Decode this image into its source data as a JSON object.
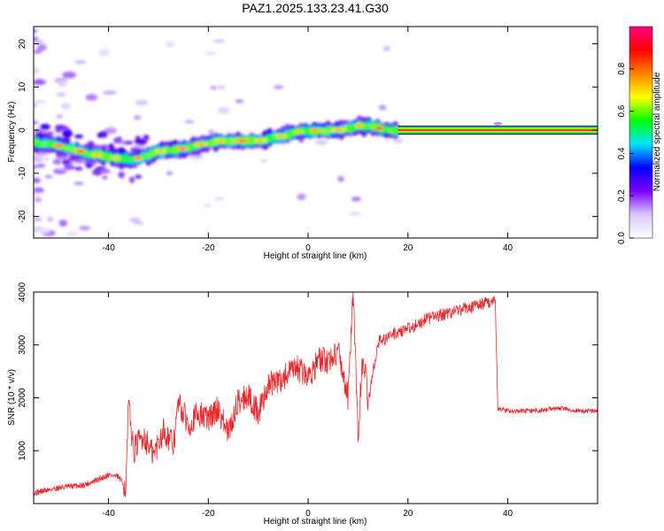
{
  "chart_data": [
    {
      "type": "heatmap",
      "title": "PAZ1.2025.133.23.41.G30",
      "xlabel": "Height of straight line (km)",
      "ylabel": "Frequency (Hz)",
      "xlim": [
        -55,
        58
      ],
      "ylim": [
        -25,
        24
      ],
      "xticks": [
        -40,
        -20,
        0,
        20,
        40
      ],
      "yticks": [
        -20,
        -10,
        0,
        10,
        20
      ],
      "colorbar": {
        "label": "Normalized spectral amplitude",
        "range": [
          0,
          1
        ],
        "ticks": [
          "0.0",
          "0.2",
          "0.4",
          "0.6",
          "0.8"
        ],
        "colors": [
          "#ffffff",
          "#d9c8ff",
          "#7b00ff",
          "#0000ff",
          "#00e5ff",
          "#00ff00",
          "#ffff00",
          "#ff8000",
          "#ff0000",
          "#ff0080"
        ]
      },
      "ridge": {
        "x": [
          -53,
          -48,
          -44,
          -40,
          -36,
          -34,
          -30,
          -26,
          -22,
          -18,
          -14,
          -10,
          -6,
          -2,
          2,
          6,
          8,
          10,
          12,
          14,
          16,
          18,
          30,
          40,
          58
        ],
        "y": [
          -3,
          -4,
          -5.5,
          -6,
          -7,
          -6.5,
          -5,
          -4.5,
          -3.5,
          -2.5,
          -2.5,
          -2.5,
          -1.5,
          -0.5,
          0,
          0,
          0.5,
          1,
          1,
          0.5,
          0,
          0,
          0,
          0,
          0
        ]
      },
      "grid": false
    },
    {
      "type": "line",
      "xlabel": "Height of straight line (km)",
      "ylabel": "SNR (10 * v/v)",
      "xlim": [
        -55,
        58
      ],
      "ylim": [
        0,
        4000
      ],
      "xticks": [
        -40,
        -20,
        0,
        20,
        40
      ],
      "yticks": [
        1000,
        2000,
        3000,
        4000
      ],
      "color": "#e8282b",
      "series": [
        {
          "x": [
            -55,
            -50,
            -45,
            -42,
            -40,
            -38,
            -36.5,
            -36,
            -35,
            -33,
            -31,
            -29,
            -27,
            -26,
            -24,
            -22,
            -20,
            -18,
            -16,
            -14,
            -12,
            -10,
            -8,
            -6,
            -4,
            -2,
            0,
            2,
            4,
            6,
            8,
            9,
            10,
            11,
            12,
            14,
            16,
            18,
            20,
            22,
            24,
            26,
            28,
            30,
            32,
            34,
            36,
            37.5,
            38,
            40,
            45,
            50,
            55,
            58
          ],
          "y": [
            200,
            300,
            350,
            450,
            550,
            500,
            300,
            1900,
            1000,
            1300,
            900,
            1400,
            1100,
            1900,
            1500,
            1700,
            1600,
            1800,
            1300,
            1950,
            2050,
            1700,
            2250,
            2300,
            2450,
            2550,
            2400,
            2700,
            2700,
            2900,
            2000,
            4000,
            1300,
            2900,
            1900,
            3050,
            3150,
            3250,
            3300,
            3400,
            3500,
            3550,
            3600,
            3650,
            3700,
            3750,
            3800,
            3850,
            1800,
            1750,
            1750,
            1800,
            1750,
            1750
          ]
        }
      ],
      "grid": false
    }
  ]
}
